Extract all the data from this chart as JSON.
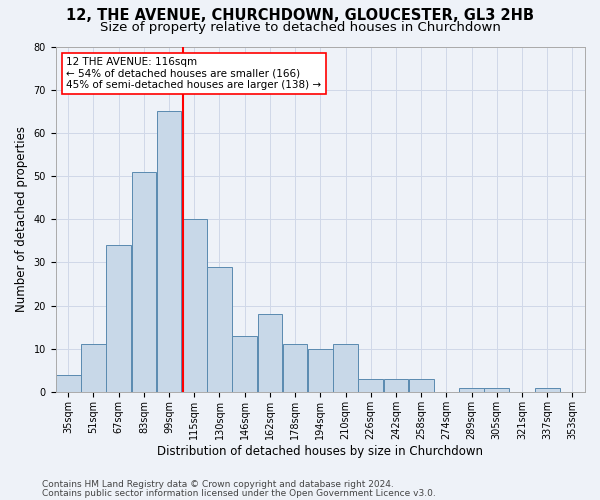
{
  "title": "12, THE AVENUE, CHURCHDOWN, GLOUCESTER, GL3 2HB",
  "subtitle": "Size of property relative to detached houses in Churchdown",
  "xlabel": "Distribution of detached houses by size in Churchdown",
  "ylabel": "Number of detached properties",
  "footer1": "Contains HM Land Registry data © Crown copyright and database right 2024.",
  "footer2": "Contains public sector information licensed under the Open Government Licence v3.0.",
  "bin_labels": [
    "35sqm",
    "51sqm",
    "67sqm",
    "83sqm",
    "99sqm",
    "115sqm",
    "130sqm",
    "146sqm",
    "162sqm",
    "178sqm",
    "194sqm",
    "210sqm",
    "226sqm",
    "242sqm",
    "258sqm",
    "274sqm",
    "289sqm",
    "305sqm",
    "321sqm",
    "337sqm",
    "353sqm"
  ],
  "bar_heights": [
    4,
    11,
    34,
    51,
    65,
    40,
    29,
    13,
    18,
    11,
    10,
    11,
    3,
    3,
    3,
    0,
    1,
    1,
    0,
    1,
    0
  ],
  "bar_color": "#c8d8e8",
  "bar_edge_color": "#5a8ab0",
  "vline_color": "red",
  "annotation_text_line1": "12 THE AVENUE: 116sqm",
  "annotation_text_line2": "← 54% of detached houses are smaller (166)",
  "annotation_text_line3": "45% of semi-detached houses are larger (138) →",
  "annotation_box_color": "white",
  "annotation_box_edge": "red",
  "ylim": [
    0,
    80
  ],
  "yticks": [
    0,
    10,
    20,
    30,
    40,
    50,
    60,
    70,
    80
  ],
  "grid_color": "#d0d8e8",
  "bg_color": "#eef2f8",
  "title_fontsize": 10.5,
  "subtitle_fontsize": 9.5,
  "axis_label_fontsize": 8.5,
  "tick_fontsize": 7,
  "footer_fontsize": 6.5,
  "annotation_fontsize": 7.5
}
